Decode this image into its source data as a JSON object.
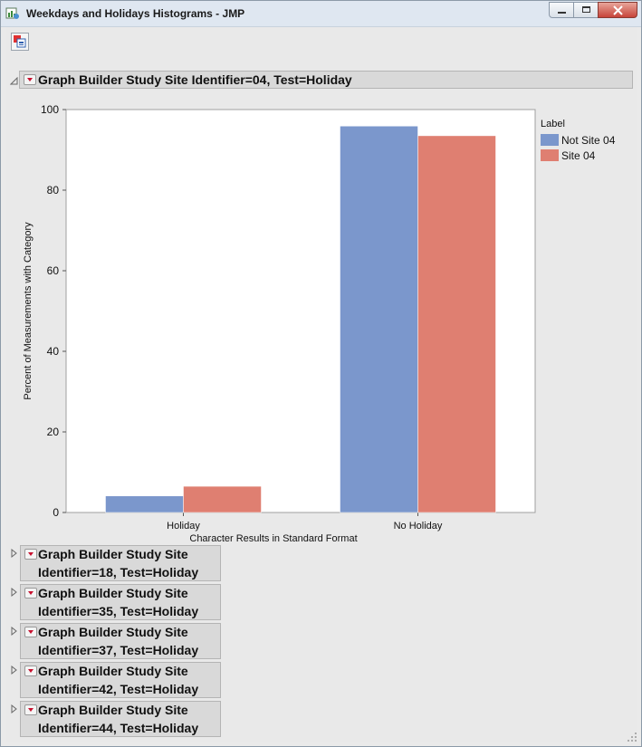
{
  "window": {
    "title": "Weekdays and Holidays Histograms - JMP"
  },
  "main_report": {
    "title": "Graph Builder Study Site Identifier=04, Test=Holiday"
  },
  "chart_data": {
    "type": "bar",
    "categories": [
      "Holiday",
      "No Holiday"
    ],
    "series": [
      {
        "name": "Not Site 04",
        "values": [
          4.1,
          95.9
        ],
        "color": "#7b97cc"
      },
      {
        "name": "Site 04",
        "values": [
          6.5,
          93.5
        ],
        "color": "#df7f71"
      }
    ],
    "xlabel": "Character Results in Standard Format",
    "ylabel": "Percent of Measurements with Category",
    "ylim": [
      0,
      100
    ],
    "yticks": [
      "0",
      "20",
      "40",
      "60",
      "80",
      "100"
    ],
    "legend_title": "Label",
    "legend_position": "right"
  },
  "collapsed_reports": [
    {
      "line1": "Graph Builder Study Site",
      "line2": "Identifier=18, Test=Holiday"
    },
    {
      "line1": "Graph Builder Study Site",
      "line2": "Identifier=35, Test=Holiday"
    },
    {
      "line1": "Graph Builder Study Site",
      "line2": "Identifier=37, Test=Holiday"
    },
    {
      "line1": "Graph Builder Study Site",
      "line2": "Identifier=42, Test=Holiday"
    },
    {
      "line1": "Graph Builder Study Site",
      "line2": "Identifier=44, Test=Holiday"
    }
  ]
}
